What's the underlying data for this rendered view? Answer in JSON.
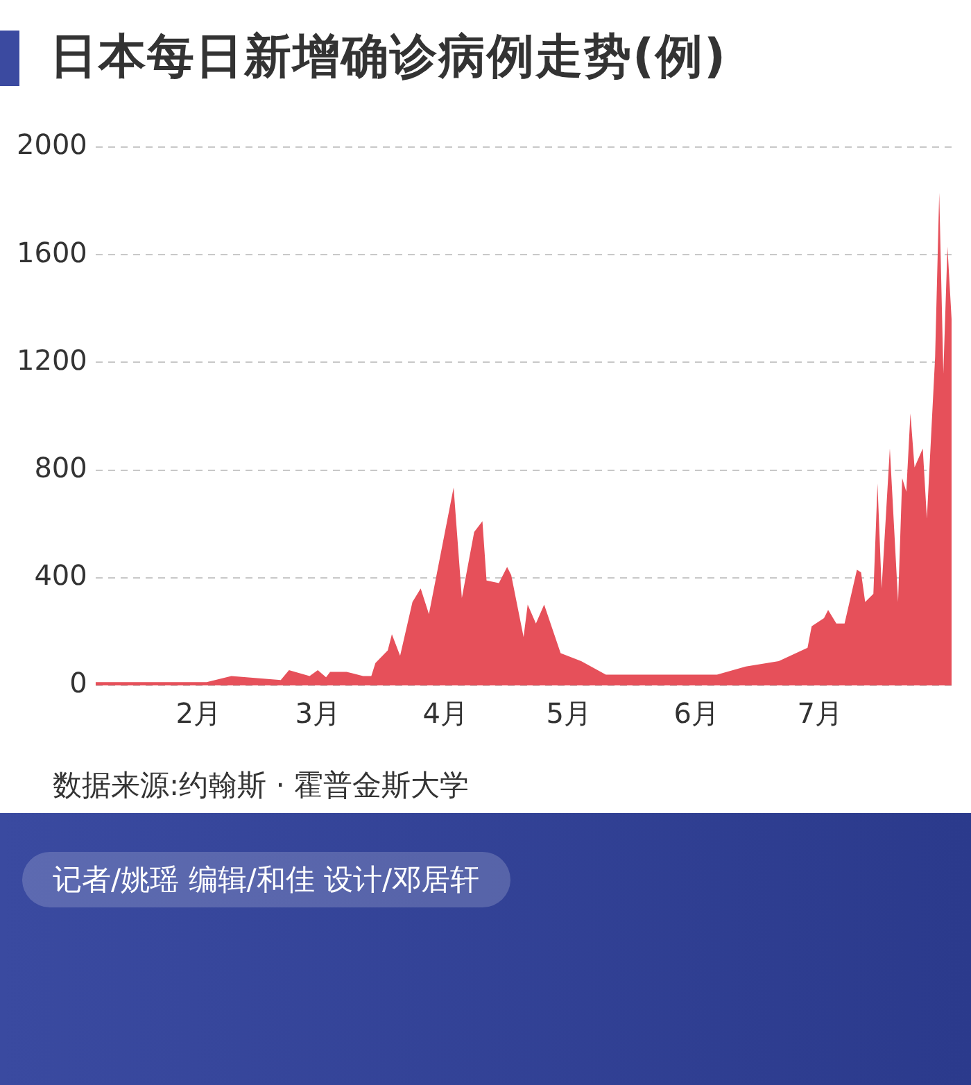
{
  "chart_data": {
    "type": "area",
    "title": "日本每日新增确诊病例走势(例)",
    "x": [
      "--01-07",
      "--02-03",
      "--02-09",
      "--02-21",
      "--02-23",
      "--02-28",
      "--03-01",
      "--03-03",
      "--03-04",
      "--03-08",
      "--03-12",
      "--03-14",
      "--03-15",
      "--03-18",
      "--03-19",
      "--03-21",
      "--03-24",
      "--03-26",
      "--03-28",
      "--04-03",
      "--04-05",
      "--04-08",
      "--04-10",
      "--04-11",
      "--04-14",
      "--04-16",
      "--04-17",
      "--04-20",
      "--04-21",
      "--04-23",
      "--04-25",
      "--04-29",
      "--05-04",
      "--05-10",
      "--06-06",
      "--06-13",
      "--06-21",
      "--06-28",
      "--06-29",
      "--07-02",
      "--07-03",
      "--07-05",
      "--07-07",
      "--07-10",
      "--07-11",
      "--07-12",
      "--07-14",
      "--07-15",
      "--07-16",
      "--07-18",
      "--07-20",
      "--07-21",
      "--07-22",
      "--07-23",
      "--07-24",
      "--07-26",
      "--07-27",
      "--07-29",
      "--07-30",
      "--07-31",
      "--08-01",
      "--08-02"
    ],
    "series": [
      {
        "color": "#e6505a",
        "values": [
          12,
          12,
          35,
          20,
          57,
          35,
          57,
          30,
          50,
          50,
          35,
          35,
          83,
          130,
          190,
          110,
          310,
          360,
          265,
          735,
          325,
          570,
          610,
          390,
          380,
          440,
          410,
          180,
          300,
          230,
          300,
          120,
          90,
          40,
          40,
          70,
          90,
          140,
          220,
          250,
          280,
          230,
          230,
          430,
          420,
          310,
          340,
          750,
          360,
          880,
          310,
          770,
          720,
          1010,
          810,
          880,
          620,
          1220,
          1830,
          1160,
          1630,
          1360
        ]
      }
    ],
    "xlim": [
      "--01-07",
      "--08-02"
    ],
    "xticks": [
      {
        "value": "--02-01",
        "label": "2月"
      },
      {
        "value": "--03-01",
        "label": "3月"
      },
      {
        "value": "--04-01",
        "label": "4月"
      },
      {
        "value": "--05-01",
        "label": "5月"
      },
      {
        "value": "--06-01",
        "label": "6月"
      },
      {
        "value": "--07-01",
        "label": "7月"
      }
    ],
    "ylim": [
      0,
      2000
    ],
    "yticks": [
      0,
      400,
      800,
      1200,
      1600,
      2000
    ],
    "grid": "y",
    "legend": false,
    "annotations": [
      "数据来源:约翰斯 · 霍普金斯大学",
      "记者/姚瑶 编辑/和佳 设计/邓居轩"
    ]
  }
}
